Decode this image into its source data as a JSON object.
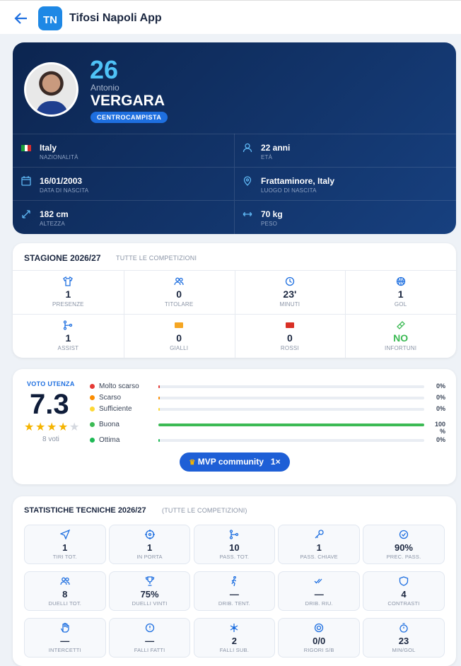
{
  "header": {
    "title": "Tifosi Napoli App",
    "logo": "TN"
  },
  "player": {
    "number": "26",
    "first_name": "Antonio",
    "last_name": "VERGARA",
    "role": "CENTROCAMPISTA"
  },
  "info": [
    {
      "value": "Italy",
      "label": "NAZIONALITÀ"
    },
    {
      "value": "22 anni",
      "label": "ETÀ"
    },
    {
      "value": "16/01/2003",
      "label": "DATA DI NASCITA"
    },
    {
      "value": "Frattaminore, Italy",
      "label": "LUOGO DI NASCITA"
    },
    {
      "value": "182 cm",
      "label": "ALTEZZA"
    },
    {
      "value": "70 kg",
      "label": "PESO"
    }
  ],
  "season": {
    "title": "STAGIONE 2026/27",
    "subtitle": "TUTTE LE COMPETIZIONI",
    "stats": [
      {
        "value": "1",
        "label": "PRESENZE"
      },
      {
        "value": "0",
        "label": "TITOLARE"
      },
      {
        "value": "23'",
        "label": "MINUTI"
      },
      {
        "value": "1",
        "label": "GOL"
      },
      {
        "value": "1",
        "label": "ASSIST"
      },
      {
        "value": "0",
        "label": "GIALLI"
      },
      {
        "value": "0",
        "label": "ROSSI"
      },
      {
        "value": "NO",
        "label": "INFORTUNI"
      }
    ]
  },
  "rating": {
    "title": "VOTO UTENZA",
    "score": "7.3",
    "stars": 4,
    "votes": "8 voti",
    "bars": [
      {
        "label": "Molto scarso",
        "value": 0,
        "value_label": "0%",
        "color": "#e53935"
      },
      {
        "label": "Scarso",
        "value": 0,
        "value_label": "0%",
        "color": "#fb8c00"
      },
      {
        "label": "Sufficiente",
        "value": 0,
        "value_label": "0%",
        "color": "#fdd835"
      },
      {
        "label": "Buona",
        "value": 100,
        "value_label": "100 %",
        "color": "#3cba54"
      },
      {
        "label": "Ottima",
        "value": 0,
        "value_label": "0%",
        "color": "#1db954"
      }
    ],
    "mvp": {
      "label": "MVP community",
      "count": "1×"
    }
  },
  "tech": {
    "title": "STATISTICHE TECNICHE 2026/27",
    "subtitle": "(TUTTE LE COMPETIZIONI)",
    "stats": [
      {
        "value": "1",
        "label": "TIRI TOT."
      },
      {
        "value": "1",
        "label": "IN PORTA"
      },
      {
        "value": "10",
        "label": "PASS. TOT."
      },
      {
        "value": "1",
        "label": "PASS. CHIAVE"
      },
      {
        "value": "90%",
        "label": "PREC. PASS."
      },
      {
        "value": "8",
        "label": "DUELLI TOT."
      },
      {
        "value": "75%",
        "label": "DUELLI VINTI"
      },
      {
        "value": "—",
        "label": "DRIB. TENT."
      },
      {
        "value": "—",
        "label": "DRIB. RIU."
      },
      {
        "value": "4",
        "label": "CONTRASTI"
      },
      {
        "value": "—",
        "label": "INTERCETTI"
      },
      {
        "value": "—",
        "label": "FALLI FATTI"
      },
      {
        "value": "2",
        "label": "FALLI SUB."
      },
      {
        "value": "0/0",
        "label": "RIGORI S/B"
      },
      {
        "value": "23",
        "label": "MIN/GOL"
      }
    ]
  }
}
